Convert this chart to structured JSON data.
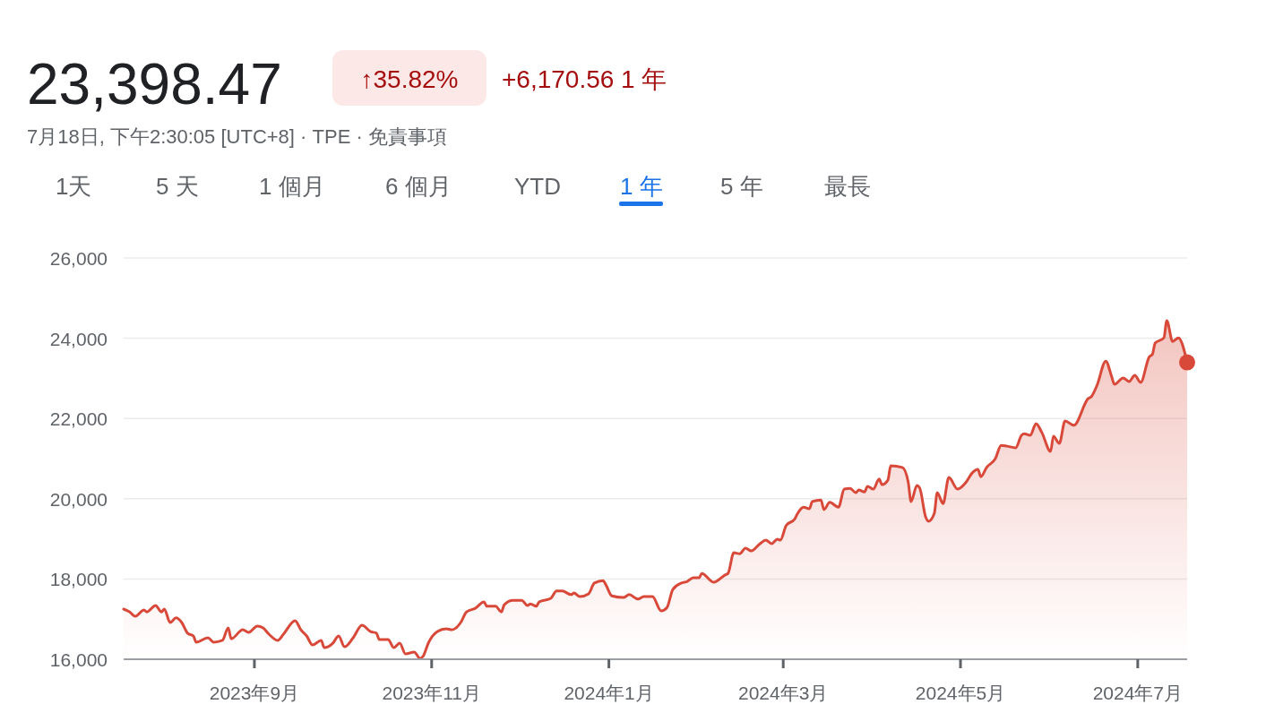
{
  "chart_data": {
    "type": "area",
    "title": "23,398.47",
    "subtitle": "7月18日, 下午2:30:05 [UTC+8] · TPE · 免責事項",
    "annotations": [
      "↑35.82%",
      "+6,170.56 1 年",
      "1天",
      "5 天",
      "1 個月",
      "6 個月",
      "YTD",
      "1 年",
      "5 年",
      "最長"
    ],
    "x": [
      "2023-07-18",
      "2023-07-20",
      "2023-07-22",
      "2023-07-25",
      "2023-07-26",
      "2023-07-29",
      "2023-07-31",
      "2023-08-01",
      "2023-08-03",
      "2023-08-05",
      "2023-08-07",
      "2023-08-09",
      "2023-08-11",
      "2023-08-12",
      "2023-08-16",
      "2023-08-18",
      "2023-08-21",
      "2023-08-23",
      "2023-08-24",
      "2023-08-28",
      "2023-08-30",
      "2023-09-02",
      "2023-09-04",
      "2023-09-06",
      "2023-09-09",
      "2023-09-11",
      "2023-09-15",
      "2023-09-17",
      "2023-09-19",
      "2023-09-21",
      "2023-09-24",
      "2023-09-25",
      "2023-09-28",
      "2023-09-30",
      "2023-10-02",
      "2023-10-05",
      "2023-10-08",
      "2023-10-11",
      "2023-10-13",
      "2023-10-14",
      "2023-10-17",
      "2023-10-19",
      "2023-10-21",
      "2023-10-23",
      "2023-10-26",
      "2023-10-28",
      "2023-10-29",
      "2023-10-31",
      "2023-11-03",
      "2023-11-06",
      "2023-11-08",
      "2023-11-11",
      "2023-11-13",
      "2023-11-16",
      "2023-11-19",
      "2023-11-20",
      "2023-11-23",
      "2023-11-25",
      "2023-11-26",
      "2023-11-29",
      "2023-12-02",
      "2023-12-04",
      "2023-12-05",
      "2023-12-07",
      "2023-12-08",
      "2023-12-12",
      "2023-12-14",
      "2023-12-16",
      "2023-12-19",
      "2023-12-20",
      "2023-12-22",
      "2023-12-25",
      "2023-12-27",
      "2023-12-30",
      "2023-12-31",
      "2024-01-02",
      "2024-01-06",
      "2024-01-08",
      "2024-01-11",
      "2024-01-13",
      "2024-01-16",
      "2024-01-19",
      "2024-01-21",
      "2024-01-23",
      "2024-01-26",
      "2024-01-28",
      "2024-01-30",
      "2024-02-01",
      "2024-02-02",
      "2024-02-06",
      "2024-02-10",
      "2024-02-11",
      "2024-02-13",
      "2024-02-15",
      "2024-02-17",
      "2024-02-19",
      "2024-02-22",
      "2024-02-24",
      "2024-02-26",
      "2024-02-28",
      "2024-02-29",
      "2024-03-02",
      "2024-03-05",
      "2024-03-06",
      "2024-03-08",
      "2024-03-10",
      "2024-03-11",
      "2024-03-14",
      "2024-03-15",
      "2024-03-17",
      "2024-03-20",
      "2024-03-22",
      "2024-03-24",
      "2024-03-26",
      "2024-03-27",
      "2024-03-29",
      "2024-03-30",
      "2024-04-01",
      "2024-04-03",
      "2024-04-04",
      "2024-04-06",
      "2024-04-07",
      "2024-04-11",
      "2024-04-13",
      "2024-04-14",
      "2024-04-16",
      "2024-04-17",
      "2024-04-19",
      "2024-04-20",
      "2024-04-22",
      "2024-04-23",
      "2024-04-25",
      "2024-04-27",
      "2024-04-30",
      "2024-05-03",
      "2024-05-05",
      "2024-05-07",
      "2024-05-08",
      "2024-05-10",
      "2024-05-13",
      "2024-05-15",
      "2024-05-17",
      "2024-05-20",
      "2024-05-22",
      "2024-05-23",
      "2024-05-25",
      "2024-05-27",
      "2024-05-29",
      "2024-06-01",
      "2024-06-02",
      "2024-06-04",
      "2024-06-06",
      "2024-06-09",
      "2024-06-14",
      "2024-06-15",
      "2024-06-17",
      "2024-06-20",
      "2024-06-22",
      "2024-06-23",
      "2024-06-26",
      "2024-06-28",
      "2024-06-30",
      "2024-07-02",
      "2024-07-05",
      "2024-07-06",
      "2024-07-07",
      "2024-07-10",
      "2024-07-11",
      "2024-07-13",
      "2024-07-15",
      "2024-07-18"
    ],
    "series": [
      {
        "color": "#d9493a",
        "values": [
          17250,
          17183,
          17070,
          17230,
          17180,
          17340,
          17180,
          17250,
          16915,
          17030,
          16915,
          16650,
          16580,
          16425,
          16535,
          16425,
          16470,
          16780,
          16510,
          16735,
          16670,
          16825,
          16780,
          16625,
          16470,
          16625,
          16960,
          16735,
          16580,
          16355,
          16470,
          16290,
          16400,
          16580,
          16310,
          16535,
          16850,
          16690,
          16650,
          16490,
          16490,
          16290,
          16400,
          16135,
          16180,
          16020,
          16070,
          16425,
          16690,
          16760,
          16735,
          16915,
          17180,
          17270,
          17430,
          17320,
          17320,
          17180,
          17360,
          17470,
          17470,
          17340,
          17380,
          17320,
          17430,
          17520,
          17700,
          17700,
          17610,
          17650,
          17560,
          17630,
          17900,
          17960,
          17850,
          17580,
          17540,
          17610,
          17500,
          17560,
          17560,
          17205,
          17290,
          17740,
          17900,
          17940,
          18030,
          18030,
          18140,
          17920,
          18100,
          18140,
          18655,
          18630,
          18770,
          18700,
          18880,
          18970,
          18880,
          18990,
          18970,
          19330,
          19500,
          19640,
          19790,
          19750,
          19930,
          19970,
          19730,
          19910,
          19790,
          20240,
          20260,
          20150,
          20220,
          20170,
          20310,
          20240,
          20490,
          20350,
          20460,
          20820,
          20780,
          20420,
          19930,
          20330,
          20260,
          19550,
          19440,
          19640,
          20150,
          19880,
          20530,
          20240,
          20420,
          20640,
          20730,
          20550,
          20780,
          21000,
          21330,
          21310,
          21270,
          21580,
          21620,
          21580,
          21870,
          21650,
          21180,
          21560,
          21380,
          21940,
          21830,
          22500,
          22540,
          22830,
          23430,
          23050,
          22850,
          23010,
          22920,
          23075,
          22900,
          23540,
          23590,
          23880,
          24010,
          24440,
          23920,
          24010,
          23398
        ]
      }
    ],
    "xlim": [
      "2023-07-18",
      "2024-07-18"
    ],
    "xticks": [
      {
        "value": "2023-09-01",
        "label": "2023年9月"
      },
      {
        "value": "2023-11-01",
        "label": "2023年11月"
      },
      {
        "value": "2024-01-01",
        "label": "2024年1月"
      },
      {
        "value": "2024-03-01",
        "label": "2024年3月"
      },
      {
        "value": "2024-05-01",
        "label": "2024年5月"
      },
      {
        "value": "2024-07-01",
        "label": "2024年7月"
      }
    ],
    "ylim": [
      16000,
      26000
    ],
    "yticks": [
      {
        "value": 16000,
        "label": "16,000"
      },
      {
        "value": 18000,
        "label": "18,000"
      },
      {
        "value": 20000,
        "label": "20,000"
      },
      {
        "value": 22000,
        "label": "22,000"
      },
      {
        "value": 24000,
        "label": "24,000"
      },
      {
        "value": 26000,
        "label": "26,000"
      }
    ],
    "grid": "y"
  }
}
